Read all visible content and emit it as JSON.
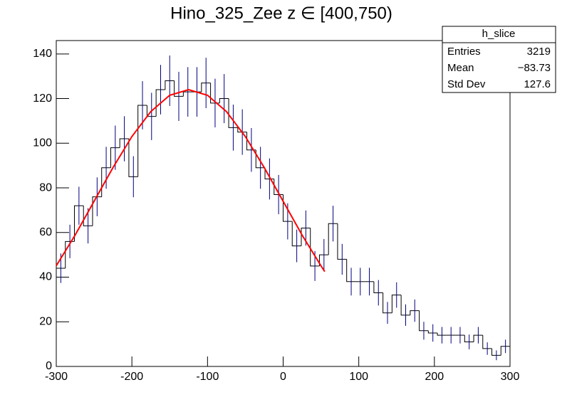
{
  "chart_data": {
    "type": "histogram",
    "title": "Hino_325_Zee z  ∈ [400,750)",
    "bins": [
      -300,
      -288,
      -276,
      -264,
      -252,
      -240,
      -228,
      -216,
      -204,
      -192,
      -180,
      -168,
      -156,
      -144,
      -132,
      -120,
      -108,
      -96,
      -84,
      -72,
      -60,
      -48,
      -36,
      -24,
      -12,
      0,
      12,
      24,
      36,
      48,
      60,
      72,
      84,
      96,
      108,
      120,
      132,
      144,
      156,
      168,
      180,
      192,
      204,
      216,
      228,
      240,
      252,
      264,
      276,
      288,
      300
    ],
    "values": [
      44,
      56,
      72,
      63,
      76,
      89,
      98,
      102,
      85,
      117,
      112,
      124,
      128,
      121,
      123,
      123,
      127,
      118,
      120,
      107,
      105,
      97,
      89,
      84,
      77,
      65,
      54,
      62,
      45,
      50,
      64,
      48,
      38,
      38,
      38,
      33,
      24,
      32,
      23,
      25,
      16,
      15,
      14,
      14,
      14,
      11,
      14,
      8,
      5,
      9
    ],
    "errors": [
      6.6,
      7.5,
      8.5,
      7.9,
      8.7,
      9.4,
      9.9,
      10.1,
      9.2,
      10.8,
      10.6,
      11.1,
      11.3,
      11.0,
      11.1,
      11.1,
      11.3,
      10.9,
      11.0,
      10.3,
      10.2,
      9.8,
      9.4,
      9.2,
      8.8,
      8.1,
      7.3,
      7.9,
      6.7,
      7.1,
      8.0,
      6.9,
      6.2,
      6.2,
      6.2,
      5.7,
      4.9,
      5.7,
      4.8,
      5.0,
      4.0,
      3.9,
      3.7,
      3.7,
      3.7,
      3.3,
      3.7,
      2.8,
      2.2,
      3.0
    ],
    "color": "#000080",
    "fit": {
      "color": "#ff0000",
      "x": [
        -300,
        -275,
        -250,
        -225,
        -200,
        -175,
        -150,
        -125,
        -100,
        -75,
        -50,
        -25,
        0,
        25,
        50,
        55
      ],
      "values": [
        45.1,
        58.9,
        74.0,
        89.1,
        103.0,
        114.2,
        121.5,
        124,
        121.5,
        114.2,
        103.0,
        89.1,
        74.0,
        58.9,
        45.1,
        42.5
      ]
    },
    "xlim": [
      -300,
      300
    ],
    "xticks": [
      -300,
      -200,
      -100,
      0,
      100,
      200,
      300
    ],
    "ylim": [
      0,
      146
    ],
    "yticks": [
      0,
      20,
      40,
      60,
      80,
      100,
      120,
      140
    ],
    "stats": {
      "name": "h_slice",
      "rows": [
        [
          "Entries",
          "3219"
        ],
        [
          "Mean",
          "−83.73"
        ],
        [
          "Std Dev",
          "127.6"
        ]
      ]
    }
  }
}
